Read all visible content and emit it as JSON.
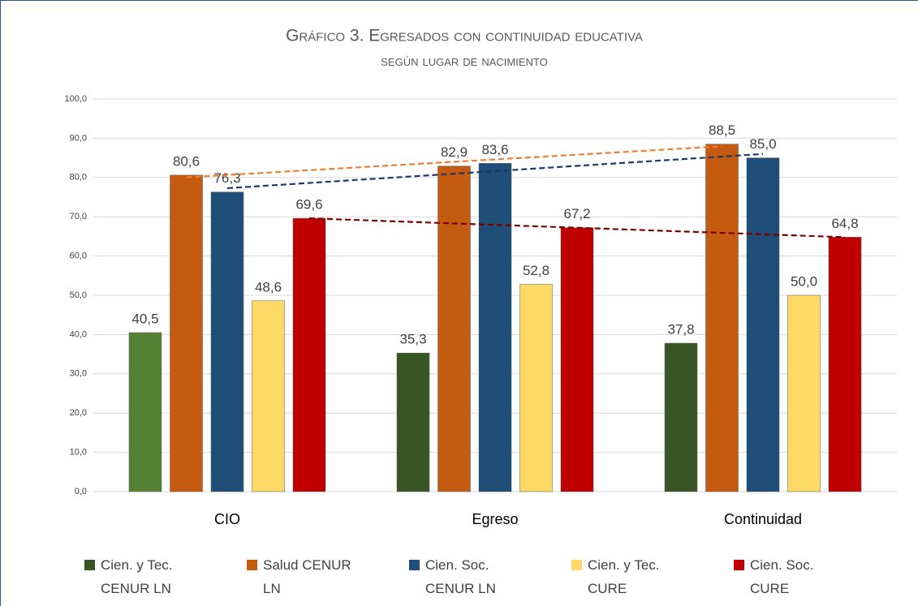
{
  "chart_data": {
    "type": "bar",
    "title": "Gráfico 3. Egresados con continuidad educativa",
    "subtitle": "según lugar de nacimiento",
    "categories": [
      "CIO",
      "Egreso",
      "Continuidad"
    ],
    "series": [
      {
        "name": "Cien. y Tec. CENUR LN",
        "color": "#375623",
        "colors": [
          "#548235",
          "#375623",
          "#375623"
        ],
        "values": [
          40.5,
          35.3,
          37.8
        ],
        "value_labels": [
          "40,5",
          "35,3",
          "37,8"
        ]
      },
      {
        "name": "Salud CENUR LN",
        "color": "#c55a11",
        "values": [
          80.6,
          82.9,
          88.5
        ],
        "value_labels": [
          "80,6",
          "82,9",
          "88,5"
        ],
        "trendline": true,
        "trend_color": "#ed7d31"
      },
      {
        "name": "Cien. Soc. CENUR LN",
        "color": "#1f4e79",
        "values": [
          76.3,
          83.6,
          85.0
        ],
        "value_labels": [
          "76,3",
          "83,6",
          "85,0"
        ],
        "trendline": true,
        "trend_color": "#203864"
      },
      {
        "name": "Cien. y Tec. CURE",
        "color": "#ffd966",
        "values": [
          48.6,
          52.8,
          50.0
        ],
        "value_labels": [
          "48,6",
          "52,8",
          "50,0"
        ]
      },
      {
        "name": "Cien. Soc. CURE",
        "color": "#c00000",
        "values": [
          69.6,
          67.2,
          64.8
        ],
        "value_labels": [
          "69,6",
          "67,2",
          "64,8"
        ],
        "trendline": true,
        "trend_color": "#7b0000"
      }
    ],
    "ylim": [
      0,
      100
    ],
    "yticks": [
      {
        "value": 0,
        "label": "0,0"
      },
      {
        "value": 10,
        "label": "10,0"
      },
      {
        "value": 20,
        "label": "20,0"
      },
      {
        "value": 30,
        "label": "30,0"
      },
      {
        "value": 40,
        "label": "40,0"
      },
      {
        "value": 50,
        "label": "50,0"
      },
      {
        "value": 60,
        "label": "60,0"
      },
      {
        "value": 70,
        "label": "70,0"
      },
      {
        "value": 80,
        "label": "80,0"
      },
      {
        "value": 90,
        "label": "90,0"
      },
      {
        "value": 100,
        "label": "100,0"
      }
    ],
    "grid": true,
    "legend": "bottom"
  }
}
